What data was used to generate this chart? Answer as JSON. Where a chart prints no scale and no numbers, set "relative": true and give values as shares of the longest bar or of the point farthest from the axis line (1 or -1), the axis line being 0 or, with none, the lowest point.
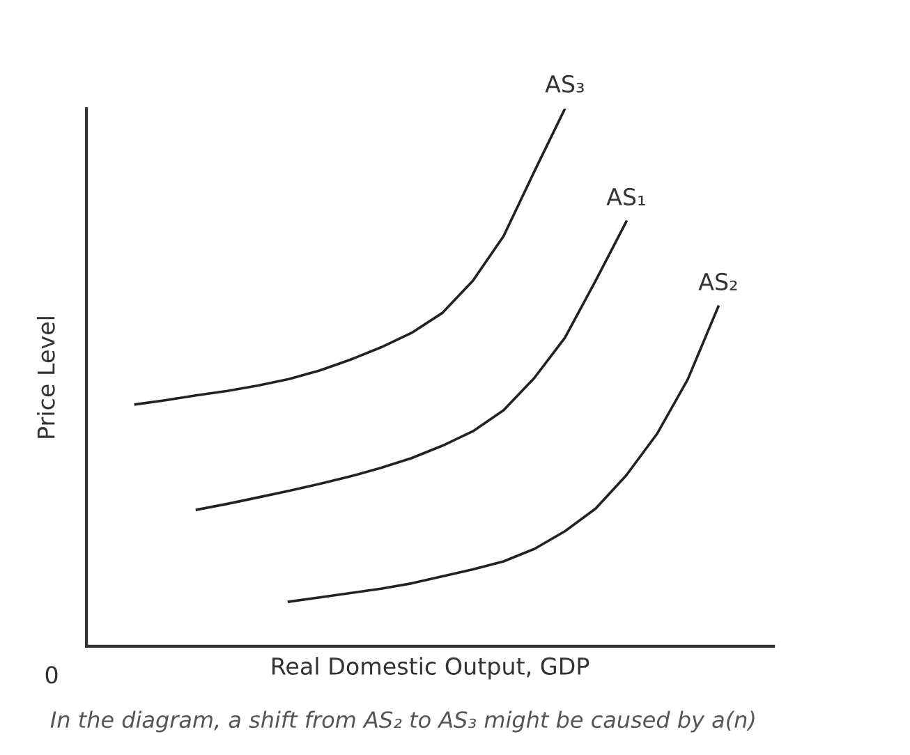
{
  "chart_data": {
    "type": "line",
    "relative": true,
    "xlabel": "Real Domestic Output, GDP",
    "ylabel": "Price Level",
    "marker": "none",
    "line_style": "solid",
    "categories": [
      null,
      null,
      null,
      null,
      null,
      null,
      null,
      null,
      null,
      null,
      null,
      null,
      null,
      null,
      null,
      null,
      null,
      null,
      null,
      null
    ],
    "series": [
      {
        "name": "AS₃",
        "color": "#222222",
        "values": [
          0.45,
          0.458,
          0.467,
          0.475,
          0.485,
          0.497,
          0.513,
          0.533,
          0.556,
          0.583,
          0.62,
          0.68,
          0.763,
          0.883,
          1.0,
          null,
          null,
          null,
          null,
          null
        ]
      },
      {
        "name": "AS₁",
        "color": "#222222",
        "values": [
          null,
          null,
          0.254,
          0.265,
          0.277,
          0.289,
          0.302,
          0.316,
          0.332,
          0.35,
          0.373,
          0.4,
          0.439,
          0.499,
          0.574,
          0.68,
          0.79,
          null,
          null,
          null
        ]
      },
      {
        "name": "AS₂",
        "color": "#222222",
        "values": [
          null,
          null,
          null,
          null,
          null,
          0.083,
          0.091,
          0.099,
          0.107,
          0.117,
          0.13,
          0.143,
          0.158,
          0.181,
          0.214,
          0.256,
          0.318,
          0.395,
          0.496,
          0.632
        ]
      }
    ],
    "annotations": [
      "0",
      "In the diagram, a shift from AS₂ to AS₃ might be caused by a(n)"
    ]
  }
}
